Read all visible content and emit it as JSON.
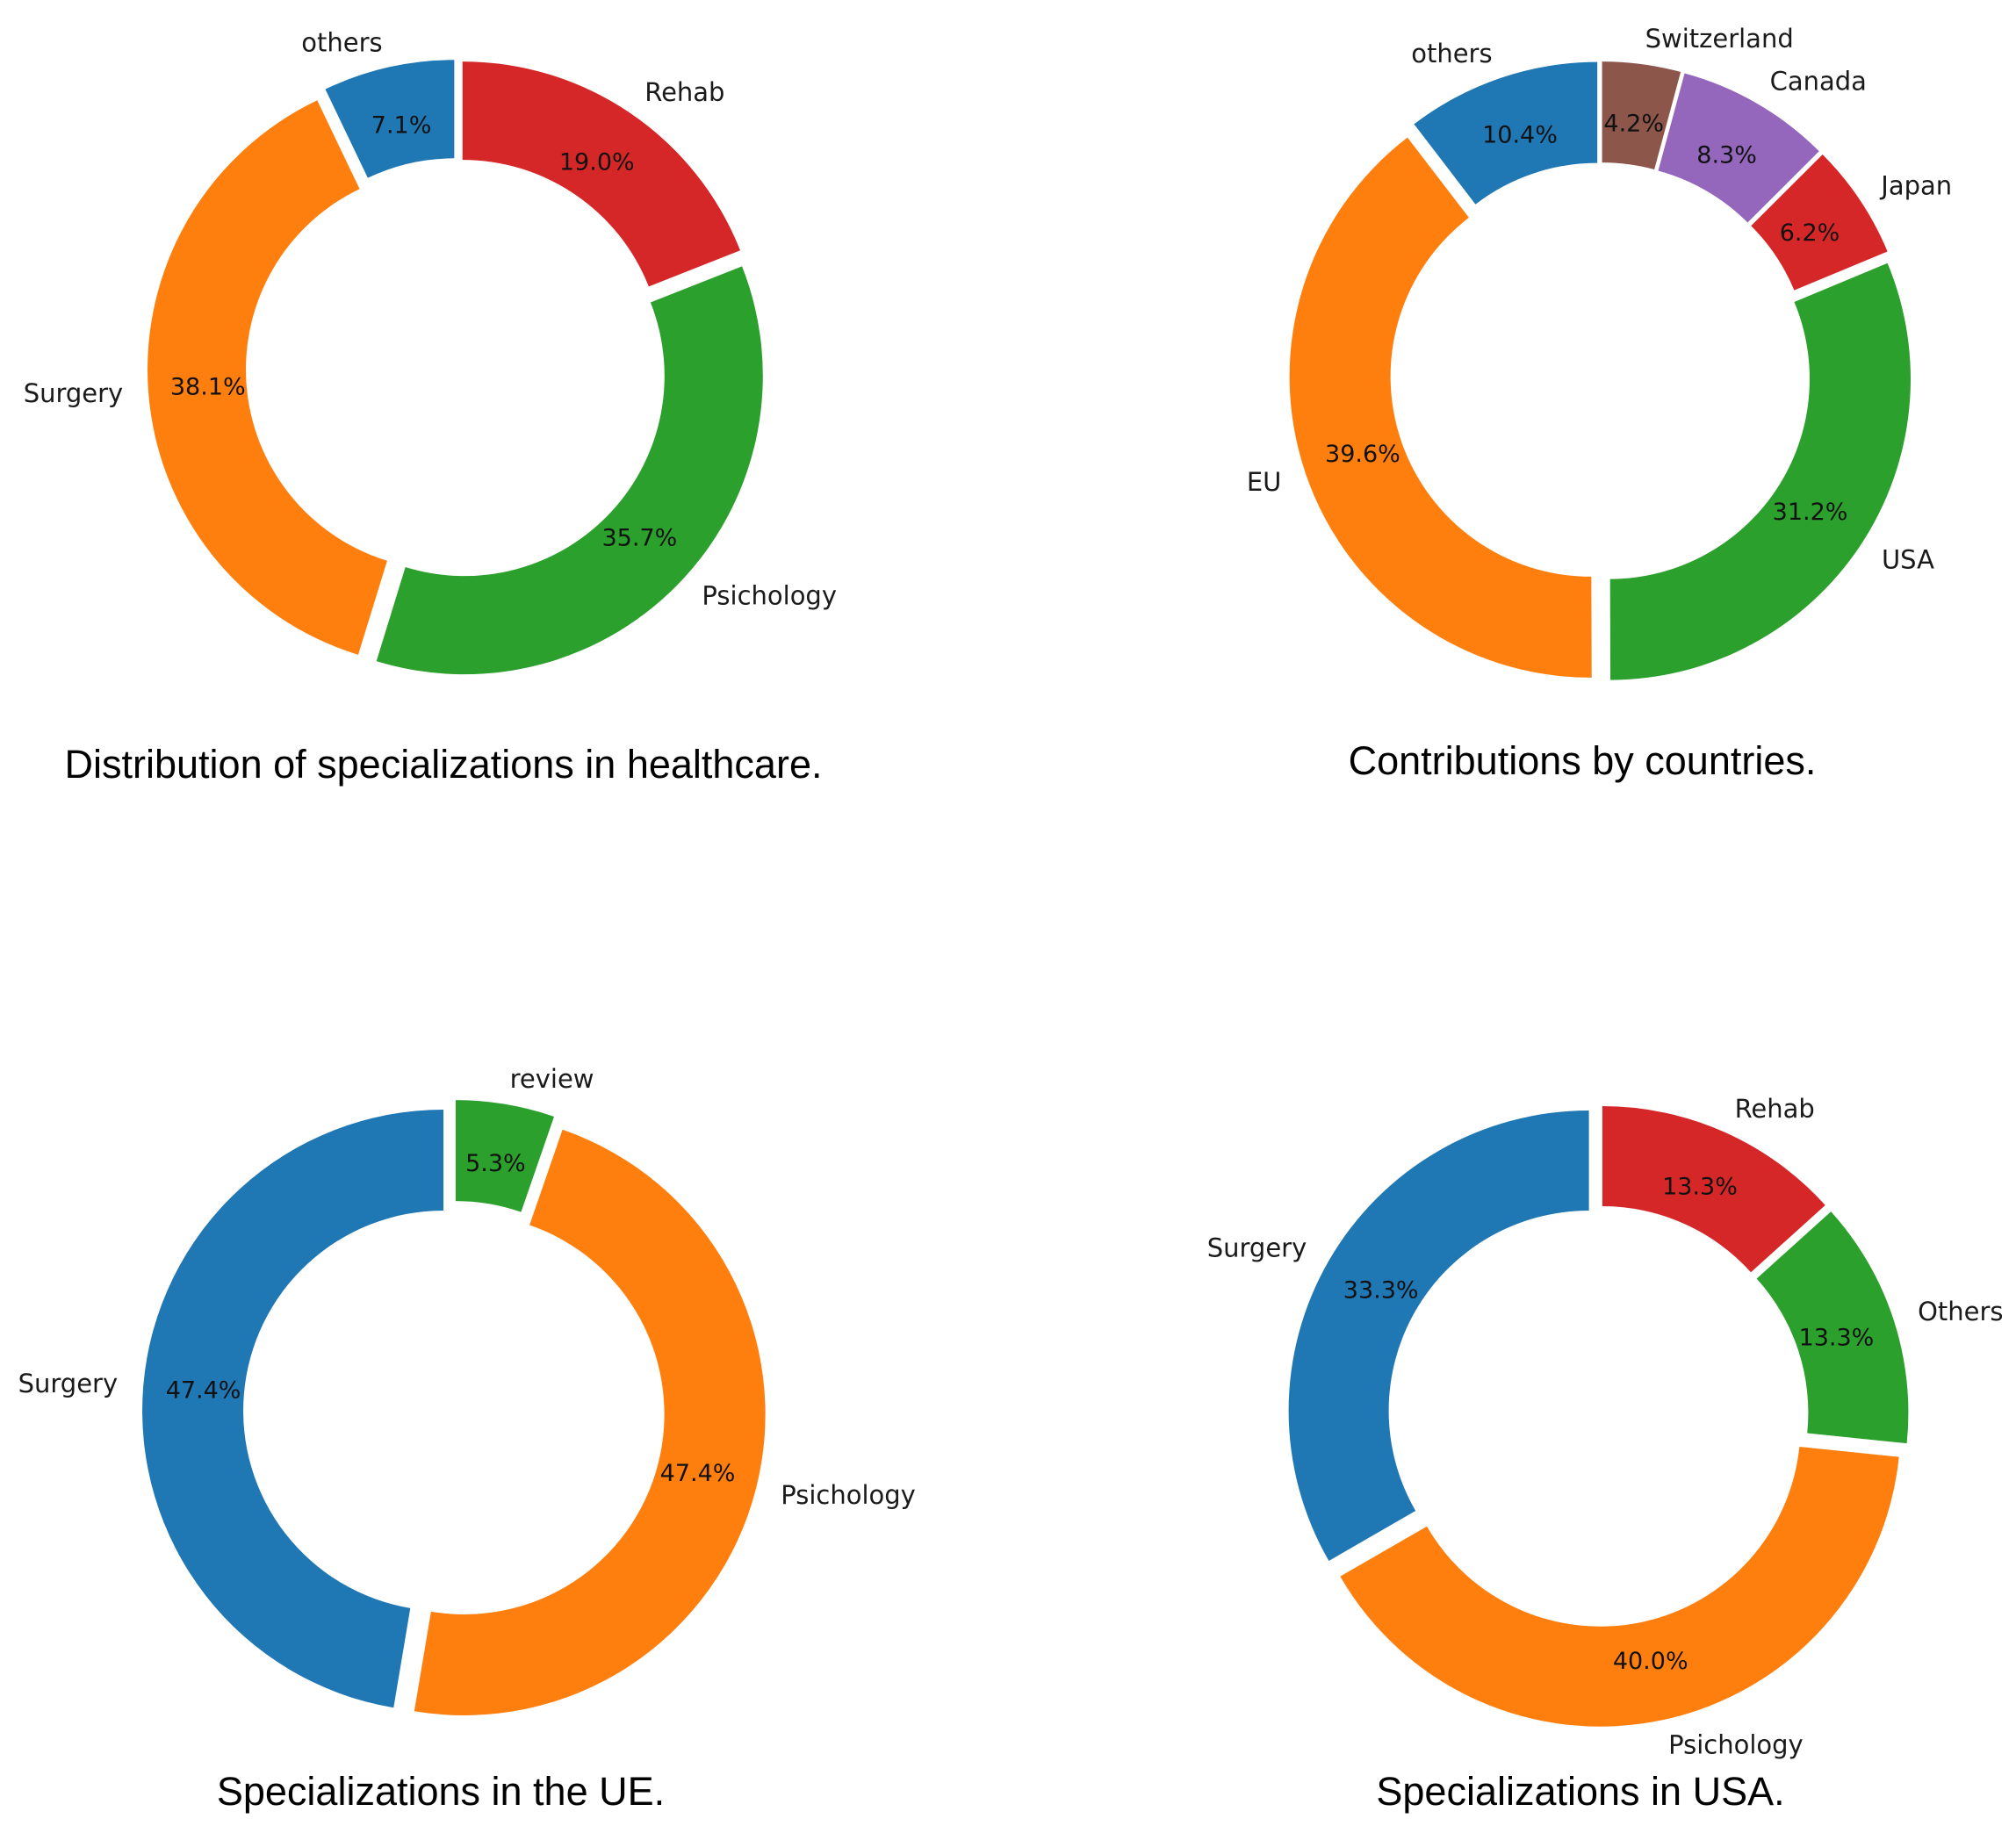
{
  "chart_data": [
    {
      "type": "pie",
      "variant": "donut",
      "title": "Distribution of specializations in healthcare.",
      "start": "top, counter-clockwise",
      "slices": [
        {
          "label": "others",
          "value": 7.1,
          "pct": "7.1%",
          "color": "#1f77b4"
        },
        {
          "label": "Surgery",
          "value": 38.1,
          "pct": "38.1%",
          "color": "#ff7f0e"
        },
        {
          "label": "Psichology",
          "value": 35.7,
          "pct": "35.7%",
          "color": "#2ca02c"
        },
        {
          "label": "Rehab",
          "value": 19.0,
          "pct": "19.0%",
          "color": "#d62728"
        }
      ]
    },
    {
      "type": "pie",
      "variant": "donut",
      "title": "Contributions by countries.",
      "start": "top, counter-clockwise",
      "slices": [
        {
          "label": "others",
          "value": 10.4,
          "pct": "10.4%",
          "color": "#1f77b4"
        },
        {
          "label": "EU",
          "value": 39.6,
          "pct": "39.6%",
          "color": "#ff7f0e"
        },
        {
          "label": "USA",
          "value": 31.2,
          "pct": "31.2%",
          "color": "#2ca02c"
        },
        {
          "label": "Japan",
          "value": 6.2,
          "pct": "6.2%",
          "color": "#d62728"
        },
        {
          "label": "Canada",
          "value": 8.3,
          "pct": "8.3%",
          "color": "#9467bd"
        },
        {
          "label": "Switzerland",
          "value": 4.2,
          "pct": "4.2%",
          "color": "#8c564b"
        }
      ]
    },
    {
      "type": "pie",
      "variant": "donut",
      "title": "Specializations in the UE.",
      "start": "top, counter-clockwise",
      "slices": [
        {
          "label": "Surgery",
          "value": 47.4,
          "pct": "47.4%",
          "color": "#1f77b4"
        },
        {
          "label": "Psichology",
          "value": 47.4,
          "pct": "47.4%",
          "color": "#ff7f0e"
        },
        {
          "label": "review",
          "value": 5.3,
          "pct": "5.3%",
          "color": "#2ca02c"
        }
      ]
    },
    {
      "type": "pie",
      "variant": "donut",
      "title": "Specializations in USA.",
      "start": "top, counter-clockwise",
      "slices": [
        {
          "label": "Surgery",
          "value": 33.3,
          "pct": "33.3%",
          "color": "#1f77b4"
        },
        {
          "label": "Psichology",
          "value": 40.0,
          "pct": "40.0%",
          "color": "#ff7f0e"
        },
        {
          "label": "Others",
          "value": 13.3,
          "pct": "13.3%",
          "color": "#2ca02c"
        },
        {
          "label": "Rehab",
          "value": 13.3,
          "pct": "13.3%",
          "color": "#d62728"
        }
      ]
    }
  ]
}
